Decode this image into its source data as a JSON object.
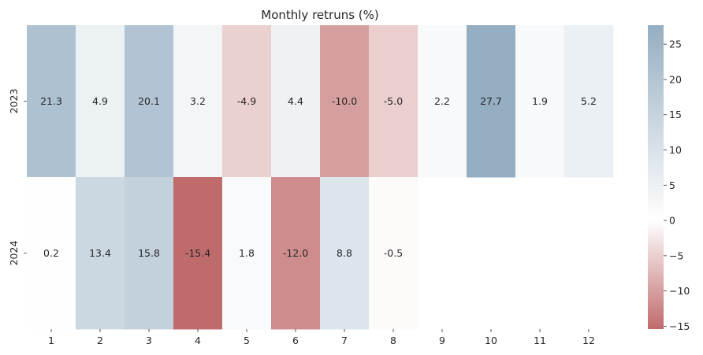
{
  "chart_data": {
    "type": "heatmap",
    "title": "Monthly retruns (%)",
    "xlabel": "",
    "ylabel": "",
    "x_categories": [
      "1",
      "2",
      "3",
      "4",
      "5",
      "6",
      "7",
      "8",
      "9",
      "10",
      "11",
      "12"
    ],
    "y_categories": [
      "2023",
      "2024"
    ],
    "values": [
      [
        21.3,
        4.9,
        20.1,
        3.2,
        -4.9,
        4.4,
        -10.0,
        -5.0,
        2.2,
        27.7,
        1.9,
        5.2
      ],
      [
        0.2,
        13.4,
        15.8,
        -15.4,
        1.8,
        -12.0,
        8.8,
        -0.5,
        null,
        null,
        null,
        null
      ]
    ],
    "value_format": "0.0",
    "colorbar": {
      "vmin": -15.4,
      "vmax": 27.7,
      "center": 0,
      "ticks": [
        25,
        20,
        15,
        10,
        5,
        0,
        -5,
        -10,
        -15
      ],
      "positive_color": "#95aec2",
      "negative_color": "#c06b6b",
      "mid_color": "#ffffff"
    }
  }
}
